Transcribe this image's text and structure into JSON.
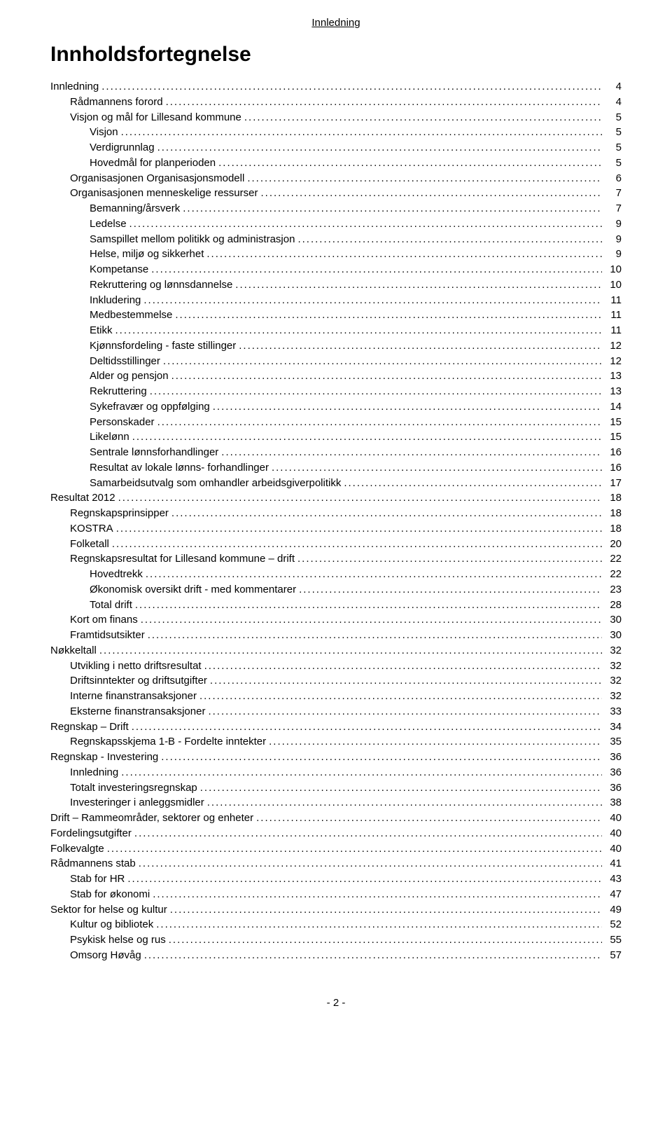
{
  "header_text": "Innledning",
  "title": "Innholdsfortegnelse",
  "footer": "- 2 -",
  "toc": [
    {
      "label": "Innledning",
      "page": 4,
      "level": 0
    },
    {
      "label": "Rådmannens forord",
      "page": 4,
      "level": 1
    },
    {
      "label": "Visjon og mål for Lillesand kommune",
      "page": 5,
      "level": 1
    },
    {
      "label": "Visjon",
      "page": 5,
      "level": 2
    },
    {
      "label": "Verdigrunnlag",
      "page": 5,
      "level": 2
    },
    {
      "label": "Hovedmål for planperioden",
      "page": 5,
      "level": 2
    },
    {
      "label": "Organisasjonen Organisasjonsmodell",
      "page": 6,
      "level": 1
    },
    {
      "label": "Organisasjonen menneskelige ressurser",
      "page": 7,
      "level": 1
    },
    {
      "label": "Bemanning/årsverk",
      "page": 7,
      "level": 2
    },
    {
      "label": "Ledelse",
      "page": 9,
      "level": 2
    },
    {
      "label": "Samspillet mellom politikk og administrasjon",
      "page": 9,
      "level": 2
    },
    {
      "label": "Helse, miljø og sikkerhet",
      "page": 9,
      "level": 2
    },
    {
      "label": "Kompetanse",
      "page": 10,
      "level": 2
    },
    {
      "label": "Rekruttering og lønnsdannelse",
      "page": 10,
      "level": 2
    },
    {
      "label": "Inkludering",
      "page": 11,
      "level": 2
    },
    {
      "label": "Medbestemmelse",
      "page": 11,
      "level": 2
    },
    {
      "label": "Etikk",
      "page": 11,
      "level": 2
    },
    {
      "label": "Kjønnsfordeling - faste stillinger",
      "page": 12,
      "level": 2
    },
    {
      "label": "Deltidsstillinger",
      "page": 12,
      "level": 2
    },
    {
      "label": "Alder og pensjon",
      "page": 13,
      "level": 2
    },
    {
      "label": "Rekruttering",
      "page": 13,
      "level": 2
    },
    {
      "label": "Sykefravær og oppfølging",
      "page": 14,
      "level": 2
    },
    {
      "label": "Personskader",
      "page": 15,
      "level": 2
    },
    {
      "label": "Likelønn",
      "page": 15,
      "level": 2
    },
    {
      "label": "Sentrale lønnsforhandlinger",
      "page": 16,
      "level": 2
    },
    {
      "label": "Resultat av lokale lønns- forhandlinger",
      "page": 16,
      "level": 2
    },
    {
      "label": "Samarbeidsutvalg som omhandler arbeidsgiverpolitikk",
      "page": 17,
      "level": 2
    },
    {
      "label": "Resultat 2012",
      "page": 18,
      "level": 0
    },
    {
      "label": "Regnskapsprinsipper",
      "page": 18,
      "level": 1
    },
    {
      "label": "KOSTRA",
      "page": 18,
      "level": 1
    },
    {
      "label": "Folketall",
      "page": 20,
      "level": 1
    },
    {
      "label": "Regnskapsresultat for Lillesand kommune – drift",
      "page": 22,
      "level": 1
    },
    {
      "label": "Hovedtrekk",
      "page": 22,
      "level": 2
    },
    {
      "label": "Økonomisk oversikt drift - med kommentarer",
      "page": 23,
      "level": 2
    },
    {
      "label": "Total drift",
      "page": 28,
      "level": 2
    },
    {
      "label": "Kort om finans",
      "page": 30,
      "level": 1
    },
    {
      "label": "Framtidsutsikter",
      "page": 30,
      "level": 1
    },
    {
      "label": "Nøkkeltall",
      "page": 32,
      "level": 0
    },
    {
      "label": "Utvikling i netto driftsresultat",
      "page": 32,
      "level": 1
    },
    {
      "label": "Driftsinntekter og driftsutgifter",
      "page": 32,
      "level": 1
    },
    {
      "label": "Interne finanstransaksjoner",
      "page": 32,
      "level": 1
    },
    {
      "label": "Eksterne finanstransaksjoner",
      "page": 33,
      "level": 1
    },
    {
      "label": "Regnskap – Drift",
      "page": 34,
      "level": 0
    },
    {
      "label": "Regnskapsskjema 1-B - Fordelte inntekter",
      "page": 35,
      "level": 1
    },
    {
      "label": "Regnskap - Investering",
      "page": 36,
      "level": 0
    },
    {
      "label": "Innledning",
      "page": 36,
      "level": 1
    },
    {
      "label": "Totalt investeringsregnskap",
      "page": 36,
      "level": 1
    },
    {
      "label": "Investeringer i anleggsmidler",
      "page": 38,
      "level": 1
    },
    {
      "label": "Drift – Rammeområder, sektorer og enheter",
      "page": 40,
      "level": 0
    },
    {
      "label": "Fordelingsutgifter",
      "page": 40,
      "level": 0
    },
    {
      "label": "Folkevalgte",
      "page": 40,
      "level": 0
    },
    {
      "label": "Rådmannens stab",
      "page": 41,
      "level": 0
    },
    {
      "label": "Stab for HR",
      "page": 43,
      "level": 1
    },
    {
      "label": "Stab for økonomi",
      "page": 47,
      "level": 1
    },
    {
      "label": "Sektor for helse og kultur",
      "page": 49,
      "level": 0
    },
    {
      "label": "Kultur og bibliotek",
      "page": 52,
      "level": 1
    },
    {
      "label": "Psykisk helse og rus",
      "page": 55,
      "level": 1
    },
    {
      "label": "Omsorg Høvåg",
      "page": 57,
      "level": 1
    }
  ]
}
